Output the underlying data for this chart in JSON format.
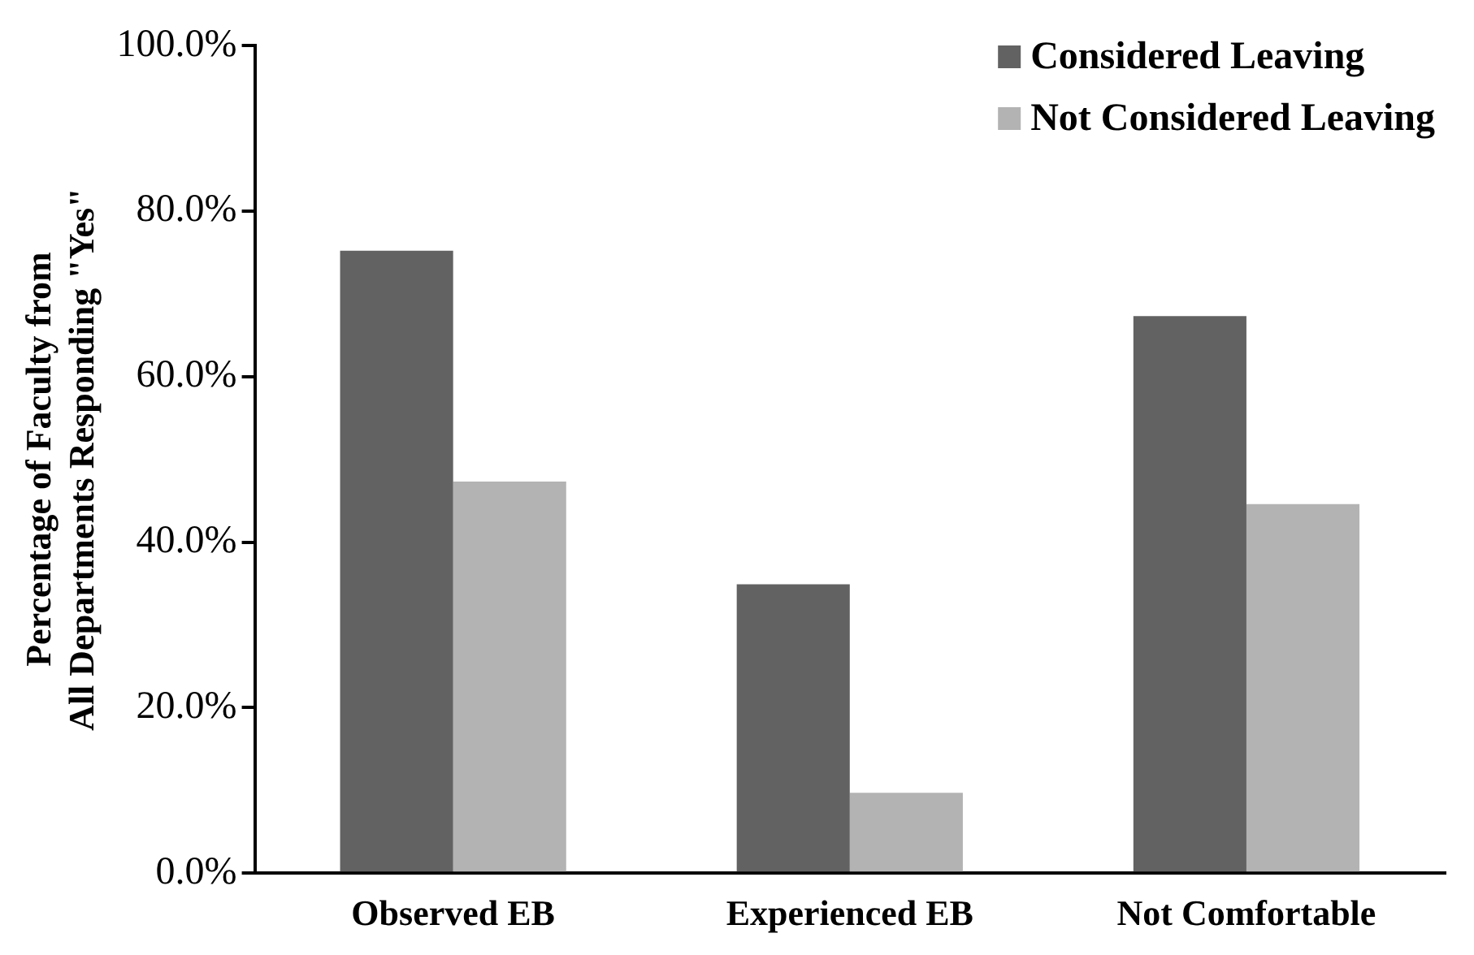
{
  "chart_data": {
    "type": "bar",
    "ylabel": "Percentage of Faculty from\nAll Departments Responding \"Yes\"",
    "categories": [
      "Observed EB",
      "Experienced EB",
      "Not Comfortable"
    ],
    "series": [
      {
        "name": "Considered Leaving",
        "color": "#626262",
        "values": [
          75.2,
          34.9,
          67.3
        ]
      },
      {
        "name": "Not Considered Leaving",
        "color": "#b3b3b3",
        "values": [
          47.3,
          9.7,
          44.6
        ]
      }
    ],
    "ylim": [
      0,
      100
    ],
    "yticks": [
      {
        "value": 0,
        "label": "0.0%"
      },
      {
        "value": 20,
        "label": "20.0%"
      },
      {
        "value": 40,
        "label": "40.0%"
      },
      {
        "value": 60,
        "label": "60.0%"
      },
      {
        "value": 80,
        "label": "80.0%"
      },
      {
        "value": 100,
        "label": "100.0%"
      }
    ],
    "grid": false,
    "legend": "top right"
  }
}
